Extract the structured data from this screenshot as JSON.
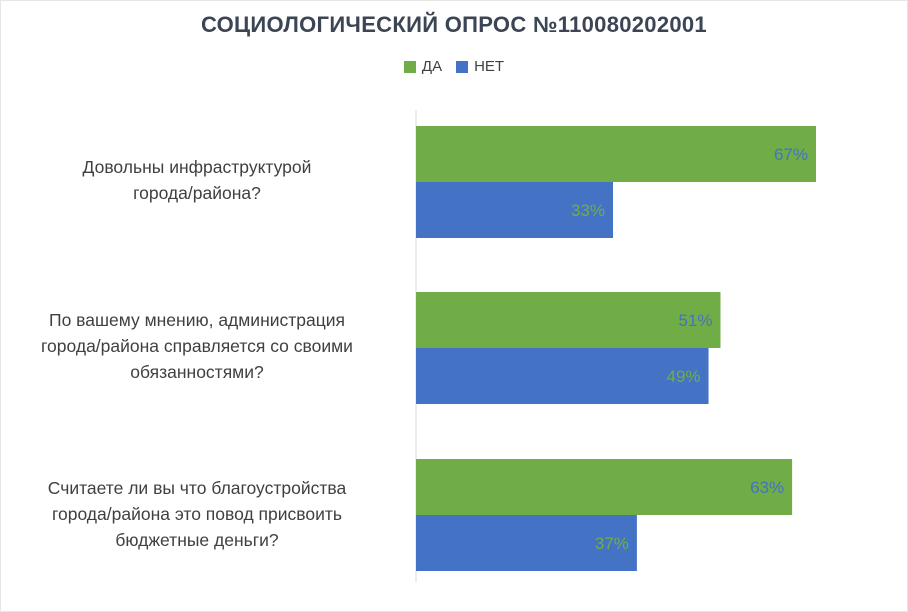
{
  "chart_data": {
    "type": "bar",
    "orientation": "horizontal",
    "title": "СОЦИОЛОГИЧЕСКИЙ ОПРОС №110080202001",
    "legend_position": "top",
    "categories": [
      "Довольны инфраструктурой города/района?",
      "По вашему мнению, администрация города/района справляется со своими обязанностями?",
      "Считаете ли вы что благоустройства города/района это повод присвоить бюджетные деньги?"
    ],
    "category_lines": [
      [
        "Довольны инфраструктурой",
        "города/района?"
      ],
      [
        "По вашему мнению, администрация",
        "города/района справляется со своими",
        "обязанностями?"
      ],
      [
        "Считаете ли вы что благоустройства",
        "города/района это повод присвоить",
        "бюджетные деньги?"
      ]
    ],
    "series": [
      {
        "name": "ДА",
        "color": "#70ad47",
        "label_color": "#4472c4",
        "values": [
          67,
          51,
          63
        ],
        "labels": [
          "67%",
          "51%",
          "63%"
        ]
      },
      {
        "name": "НЕТ",
        "color": "#4472c4",
        "label_color": "#70ad47",
        "values": [
          33,
          49,
          37
        ],
        "labels": [
          "33%",
          "49%",
          "37%"
        ]
      }
    ],
    "xlim": [
      0,
      100
    ],
    "grid": false
  }
}
